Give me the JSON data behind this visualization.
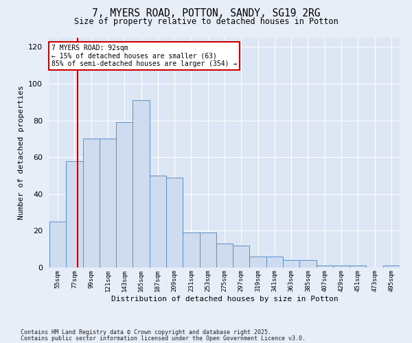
{
  "title_line1": "7, MYERS ROAD, POTTON, SANDY, SG19 2RG",
  "title_line2": "Size of property relative to detached houses in Potton",
  "xlabel": "Distribution of detached houses by size in Potton",
  "ylabel": "Number of detached properties",
  "categories": [
    "55sqm",
    "77sqm",
    "99sqm",
    "121sqm",
    "143sqm",
    "165sqm",
    "187sqm",
    "209sqm",
    "231sqm",
    "253sqm",
    "275sqm",
    "297sqm",
    "319sqm",
    "341sqm",
    "363sqm",
    "385sqm",
    "407sqm",
    "429sqm",
    "451sqm",
    "473sqm",
    "495sqm"
  ],
  "bar_heights": [
    25,
    58,
    70,
    70,
    79,
    91,
    50,
    49,
    19,
    19,
    13,
    12,
    6,
    6,
    4,
    4,
    1,
    1,
    1,
    0,
    1
  ],
  "bar_color": "#cfdcef",
  "bar_edge_color": "#5b8fc9",
  "vline_color": "#cc0000",
  "vline_x": 1.68,
  "annotation_text": "7 MYERS ROAD: 92sqm\n← 15% of detached houses are smaller (63)\n85% of semi-detached houses are larger (354) →",
  "annotation_box_color": "#cc0000",
  "ylim": [
    0,
    125
  ],
  "yticks": [
    0,
    20,
    40,
    60,
    80,
    100,
    120
  ],
  "footer_line1": "Contains HM Land Registry data © Crown copyright and database right 2025.",
  "footer_line2": "Contains public sector information licensed under the Open Government Licence v3.0.",
  "bg_color": "#e8eef8",
  "plot_bg_color": "#dce6f5",
  "grid_color": "#ffffff"
}
